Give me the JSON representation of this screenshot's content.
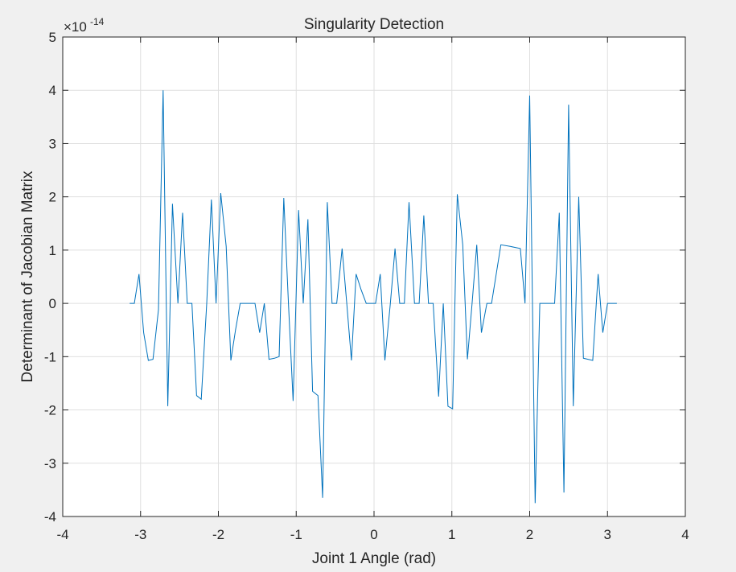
{
  "colors": {
    "background": "#f0f0f0",
    "axes_background": "#ffffff",
    "axis_color": "#262626",
    "grid_color": "#dfdfdf",
    "series_color": "#0072bd"
  },
  "chart_data": {
    "type": "line",
    "title": "Singularity Detection",
    "xlabel": "Joint 1 Angle (rad)",
    "ylabel": "Determinant of Jacobian Matrix",
    "exponent_base": "×10",
    "exponent_power": "-14",
    "xlim": [
      -4,
      4
    ],
    "ylim": [
      -4,
      5
    ],
    "xticks": [
      -4,
      -3,
      -2,
      -1,
      0,
      1,
      2,
      3,
      4
    ],
    "xtick_labels": [
      "-4",
      "-3",
      "-2",
      "-1",
      "0",
      "1",
      "2",
      "3",
      "4"
    ],
    "yticks": [
      -4,
      -3,
      -2,
      -1,
      0,
      1,
      2,
      3,
      4,
      5
    ],
    "ytick_labels": [
      "-4",
      "-3",
      "-2",
      "-1",
      "0",
      "1",
      "2",
      "3",
      "4",
      "5"
    ],
    "grid": true,
    "legend": false,
    "series": [
      {
        "x": [
          -3.14,
          -3.08,
          -3.02,
          -2.96,
          -2.9,
          -2.84,
          -2.77,
          -2.71,
          -2.65,
          -2.59,
          -2.52,
          -2.46,
          -2.4,
          -2.34,
          -2.28,
          -2.22,
          -2.15,
          -2.09,
          -2.03,
          -1.97,
          -1.9,
          -1.84,
          -1.78,
          -1.72,
          -1.66,
          -1.59,
          -1.53,
          -1.47,
          -1.41,
          -1.35,
          -1.28,
          -1.22,
          -1.16,
          -1.1,
          -1.04,
          -0.97,
          -0.91,
          -0.85,
          -0.79,
          -0.72,
          -0.66,
          -0.6,
          -0.54,
          -0.48,
          -0.41,
          -0.35,
          -0.29,
          -0.23,
          -0.17,
          -0.1,
          -0.04,
          0.02,
          0.08,
          0.14,
          0.21,
          0.27,
          0.33,
          0.39,
          0.45,
          0.52,
          0.58,
          0.64,
          0.7,
          0.76,
          0.83,
          0.89,
          0.95,
          1.01,
          1.07,
          1.14,
          1.2,
          1.26,
          1.32,
          1.38,
          1.45,
          1.51,
          1.57,
          1.63,
          1.75,
          1.88,
          1.94,
          2.0,
          2.07,
          2.13,
          2.19,
          2.25,
          2.32,
          2.38,
          2.44,
          2.5,
          2.56,
          2.63,
          2.69,
          2.75,
          2.81,
          2.88,
          2.94,
          3.0,
          3.06,
          3.12
        ],
        "y": [
          0,
          0,
          0.55,
          -0.55,
          -1.07,
          -1.05,
          -0.12,
          4.0,
          -1.93,
          1.87,
          0,
          1.7,
          0,
          0,
          -1.73,
          -1.8,
          0,
          1.95,
          0,
          2.07,
          1.07,
          -1.07,
          -0.5,
          0,
          0,
          0,
          0,
          -0.55,
          0,
          -1.05,
          -1.03,
          -1.0,
          1.98,
          0,
          -1.83,
          1.75,
          0,
          1.58,
          -1.65,
          -1.73,
          -3.65,
          1.9,
          0,
          0,
          1.03,
          0,
          -1.07,
          0.55,
          0.27,
          0,
          0,
          0,
          0.55,
          -1.07,
          0,
          1.03,
          0,
          0,
          1.9,
          0,
          0,
          1.65,
          0,
          0,
          -1.75,
          0,
          -1.93,
          -1.98,
          2.05,
          1.1,
          -1.05,
          0,
          1.1,
          -0.55,
          0,
          0,
          0.55,
          1.1,
          1.07,
          1.03,
          0,
          3.9,
          -3.75,
          0,
          0,
          0,
          0,
          1.7,
          -3.55,
          3.73,
          -1.93,
          2.0,
          -1.03,
          -1.05,
          -1.07,
          0.55,
          -0.55,
          0,
          0,
          0
        ]
      }
    ]
  }
}
